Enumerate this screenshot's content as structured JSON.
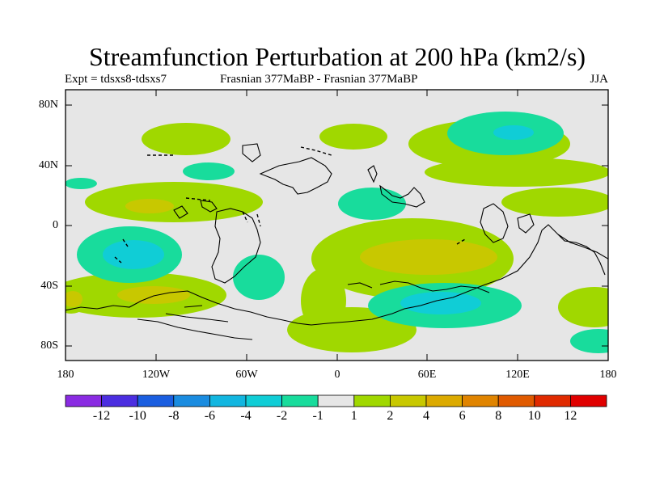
{
  "title": "Streamfunction Perturbation at 200 hPa (km2/s)",
  "subtitle_left": "Expt = tdsxs8-tdsxs7",
  "subtitle_center": "Frasnian 377MaBP - Frasnian 377MaBP",
  "subtitle_right": "JJA",
  "y_ticks": [
    "80N",
    "40N",
    "0",
    "40S",
    "80S"
  ],
  "x_ticks": [
    "180",
    "120W",
    "60W",
    "0",
    "60E",
    "120E",
    "180"
  ],
  "colorbar": {
    "labels": [
      "-12",
      "-10",
      "-8",
      "-6",
      "-4",
      "-2",
      "-1",
      "1",
      "2",
      "4",
      "6",
      "8",
      "10",
      "12"
    ],
    "colors": [
      "#8a2be2",
      "#4b2ee0",
      "#1a5ee0",
      "#1a8ce0",
      "#12b6e0",
      "#10cdd6",
      "#18dc9c",
      "#e6e6e6",
      "#a0d800",
      "#c8c800",
      "#dcaa00",
      "#e08400",
      "#e05a00",
      "#e02a00",
      "#e00000"
    ]
  },
  "colors": {
    "background_field": "#e6e6e6",
    "light_green": "#a0d800",
    "olive": "#c8c800",
    "teal": "#18dc9c",
    "cyan": "#10cdd6"
  }
}
